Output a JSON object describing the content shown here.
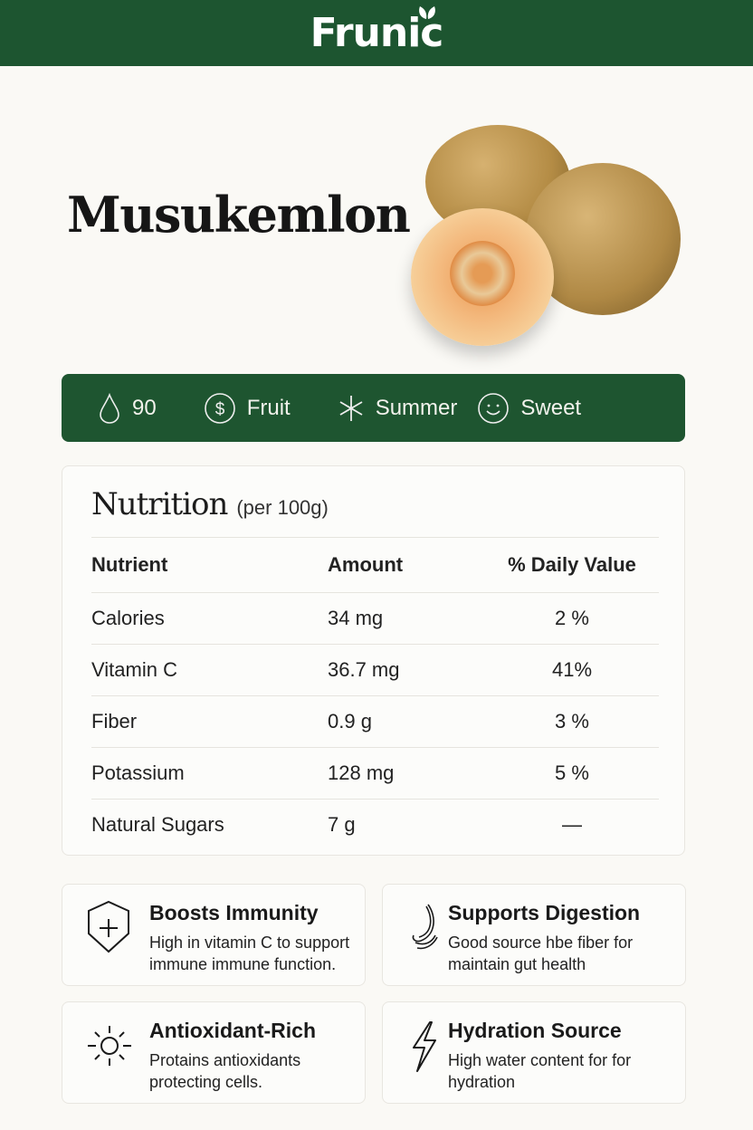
{
  "brand": {
    "name": "Frunic",
    "color": "#1e5530"
  },
  "product": {
    "name": "Musukemlon",
    "image": "cantaloupe melons"
  },
  "tags": [
    {
      "icon": "water-drop-icon",
      "label": "90"
    },
    {
      "icon": "dollar-circle-icon",
      "label": "Fruit"
    },
    {
      "icon": "snowflake-icon",
      "label": "Summer"
    },
    {
      "icon": "smiley-icon",
      "label": "Sweet"
    }
  ],
  "nutrition": {
    "title": "Nutrition",
    "subtitle": "(per 100g)",
    "headers": [
      "Nutrient",
      "Amount",
      "% Daily Value"
    ],
    "rows": [
      [
        "Calories",
        "34 mg",
        "2 %"
      ],
      [
        "Vitamin C",
        "36.7 mg",
        "41%"
      ],
      [
        "Fiber",
        "0.9 g",
        "3 %"
      ],
      [
        "Potassium",
        "128 mg",
        "5 %"
      ],
      [
        "Natural Sugars",
        "7 g",
        "—"
      ]
    ]
  },
  "benefits": [
    {
      "icon": "shield-plus-icon",
      "title": "Boosts Immunity",
      "desc": "High in vitamin C to support immune immune function."
    },
    {
      "icon": "stomach-icon",
      "title": "Supports Digestion",
      "desc": "Good source hbe fiber for maintain gut health"
    },
    {
      "icon": "sun-icon",
      "title": "Antioxidant-Rich",
      "desc": "Protains antioxidants protecting cells."
    },
    {
      "icon": "lightning-icon",
      "title": "Hydration Source",
      "desc": "High water content for for hydration"
    }
  ]
}
